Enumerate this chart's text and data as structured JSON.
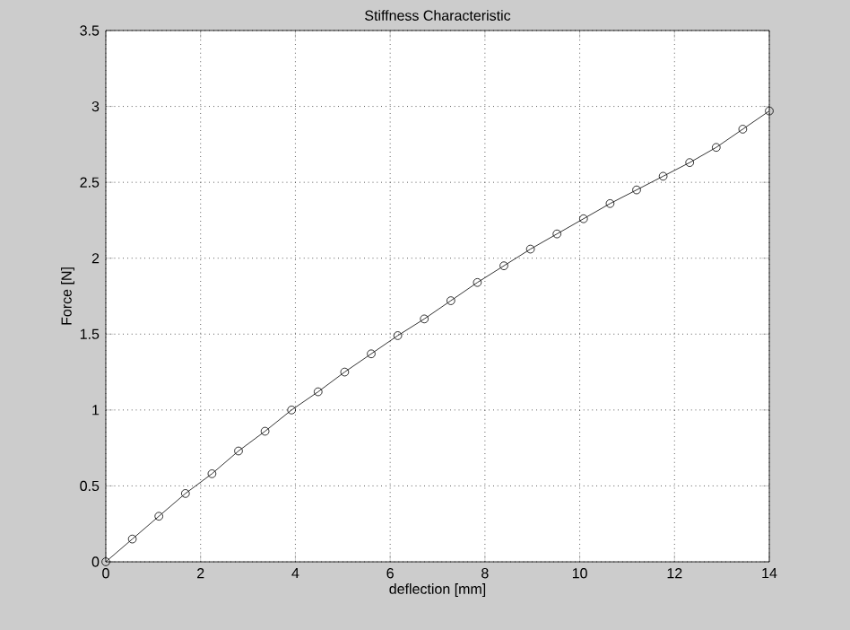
{
  "chart_data": {
    "type": "line",
    "title": "Stiffness Characteristic",
    "xlabel": "deflection [mm]",
    "ylabel": "Force [N]",
    "x": [
      0,
      0.56,
      1.12,
      1.68,
      2.24,
      2.8,
      3.36,
      3.92,
      4.48,
      5.04,
      5.6,
      6.16,
      6.72,
      7.28,
      7.84,
      8.4,
      8.96,
      9.52,
      10.08,
      10.64,
      11.2,
      11.76,
      12.32,
      12.88,
      13.44,
      14
    ],
    "series": [
      {
        "color": "#000000",
        "values": [
          0,
          0.15,
          0.3,
          0.45,
          0.58,
          0.73,
          0.86,
          1.0,
          1.12,
          1.25,
          1.37,
          1.49,
          1.6,
          1.72,
          1.84,
          1.95,
          2.06,
          2.16,
          2.26,
          2.36,
          2.45,
          2.54,
          2.63,
          2.73,
          2.85,
          2.97
        ]
      }
    ],
    "xlim": [
      0,
      14
    ],
    "ylim": [
      0,
      3.5
    ],
    "xticks": [
      0,
      2,
      4,
      6,
      8,
      10,
      12,
      14
    ],
    "yticks": [
      0,
      0.5,
      1,
      1.5,
      2,
      2.5,
      3,
      3.5
    ],
    "grid": true,
    "marker": "circle",
    "line_style": "solid"
  }
}
